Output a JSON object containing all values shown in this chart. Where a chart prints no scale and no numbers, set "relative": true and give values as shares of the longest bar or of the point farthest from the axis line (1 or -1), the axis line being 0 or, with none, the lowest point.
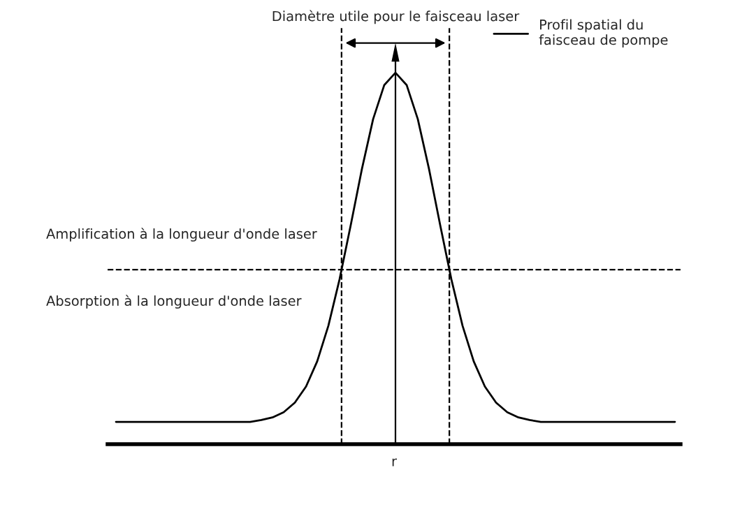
{
  "chart_data": {
    "type": "line",
    "relative": true,
    "xlabel": "r",
    "categories": [
      null,
      null,
      null,
      null,
      null,
      null,
      null,
      null,
      null,
      null,
      null,
      null,
      null,
      null,
      null,
      null,
      null,
      null,
      null,
      null,
      null,
      null,
      null,
      null,
      null,
      null,
      null,
      null,
      null,
      null,
      null,
      null,
      null,
      null,
      null,
      null,
      null,
      null,
      null,
      null,
      null,
      null,
      null,
      null,
      null,
      null,
      null,
      null,
      null,
      null,
      null
    ],
    "series": [
      {
        "name": "Profil spatial du\nfaisceau de pompe",
        "color": "#000000",
        "values": [
          0.06,
          0.06,
          0.06,
          0.06,
          0.06,
          0.06,
          0.06,
          0.06,
          0.06,
          0.06,
          0.06,
          0.06,
          0.06,
          0.065,
          0.072,
          0.086,
          0.112,
          0.155,
          0.223,
          0.319,
          0.444,
          0.59,
          0.741,
          0.875,
          0.967,
          1.0,
          0.967,
          0.875,
          0.741,
          0.59,
          0.444,
          0.319,
          0.223,
          0.155,
          0.112,
          0.086,
          0.072,
          0.065,
          0.06,
          0.06,
          0.06,
          0.06,
          0.06,
          0.06,
          0.06,
          0.06,
          0.06,
          0.06,
          0.06,
          0.06,
          0.06
        ]
      }
    ],
    "ref_lines": [
      {
        "axis": "y",
        "value": 0.47,
        "line_style": "dashed",
        "color": "#000000"
      }
    ],
    "annotations": [
      "Diamètre utile pour le faisceau laser",
      "Amplification à la longueur d'onde laser",
      "Absorption à la longueur d'onde laser"
    ],
    "legend": "top right",
    "line_style": "solid",
    "marker": "none"
  }
}
